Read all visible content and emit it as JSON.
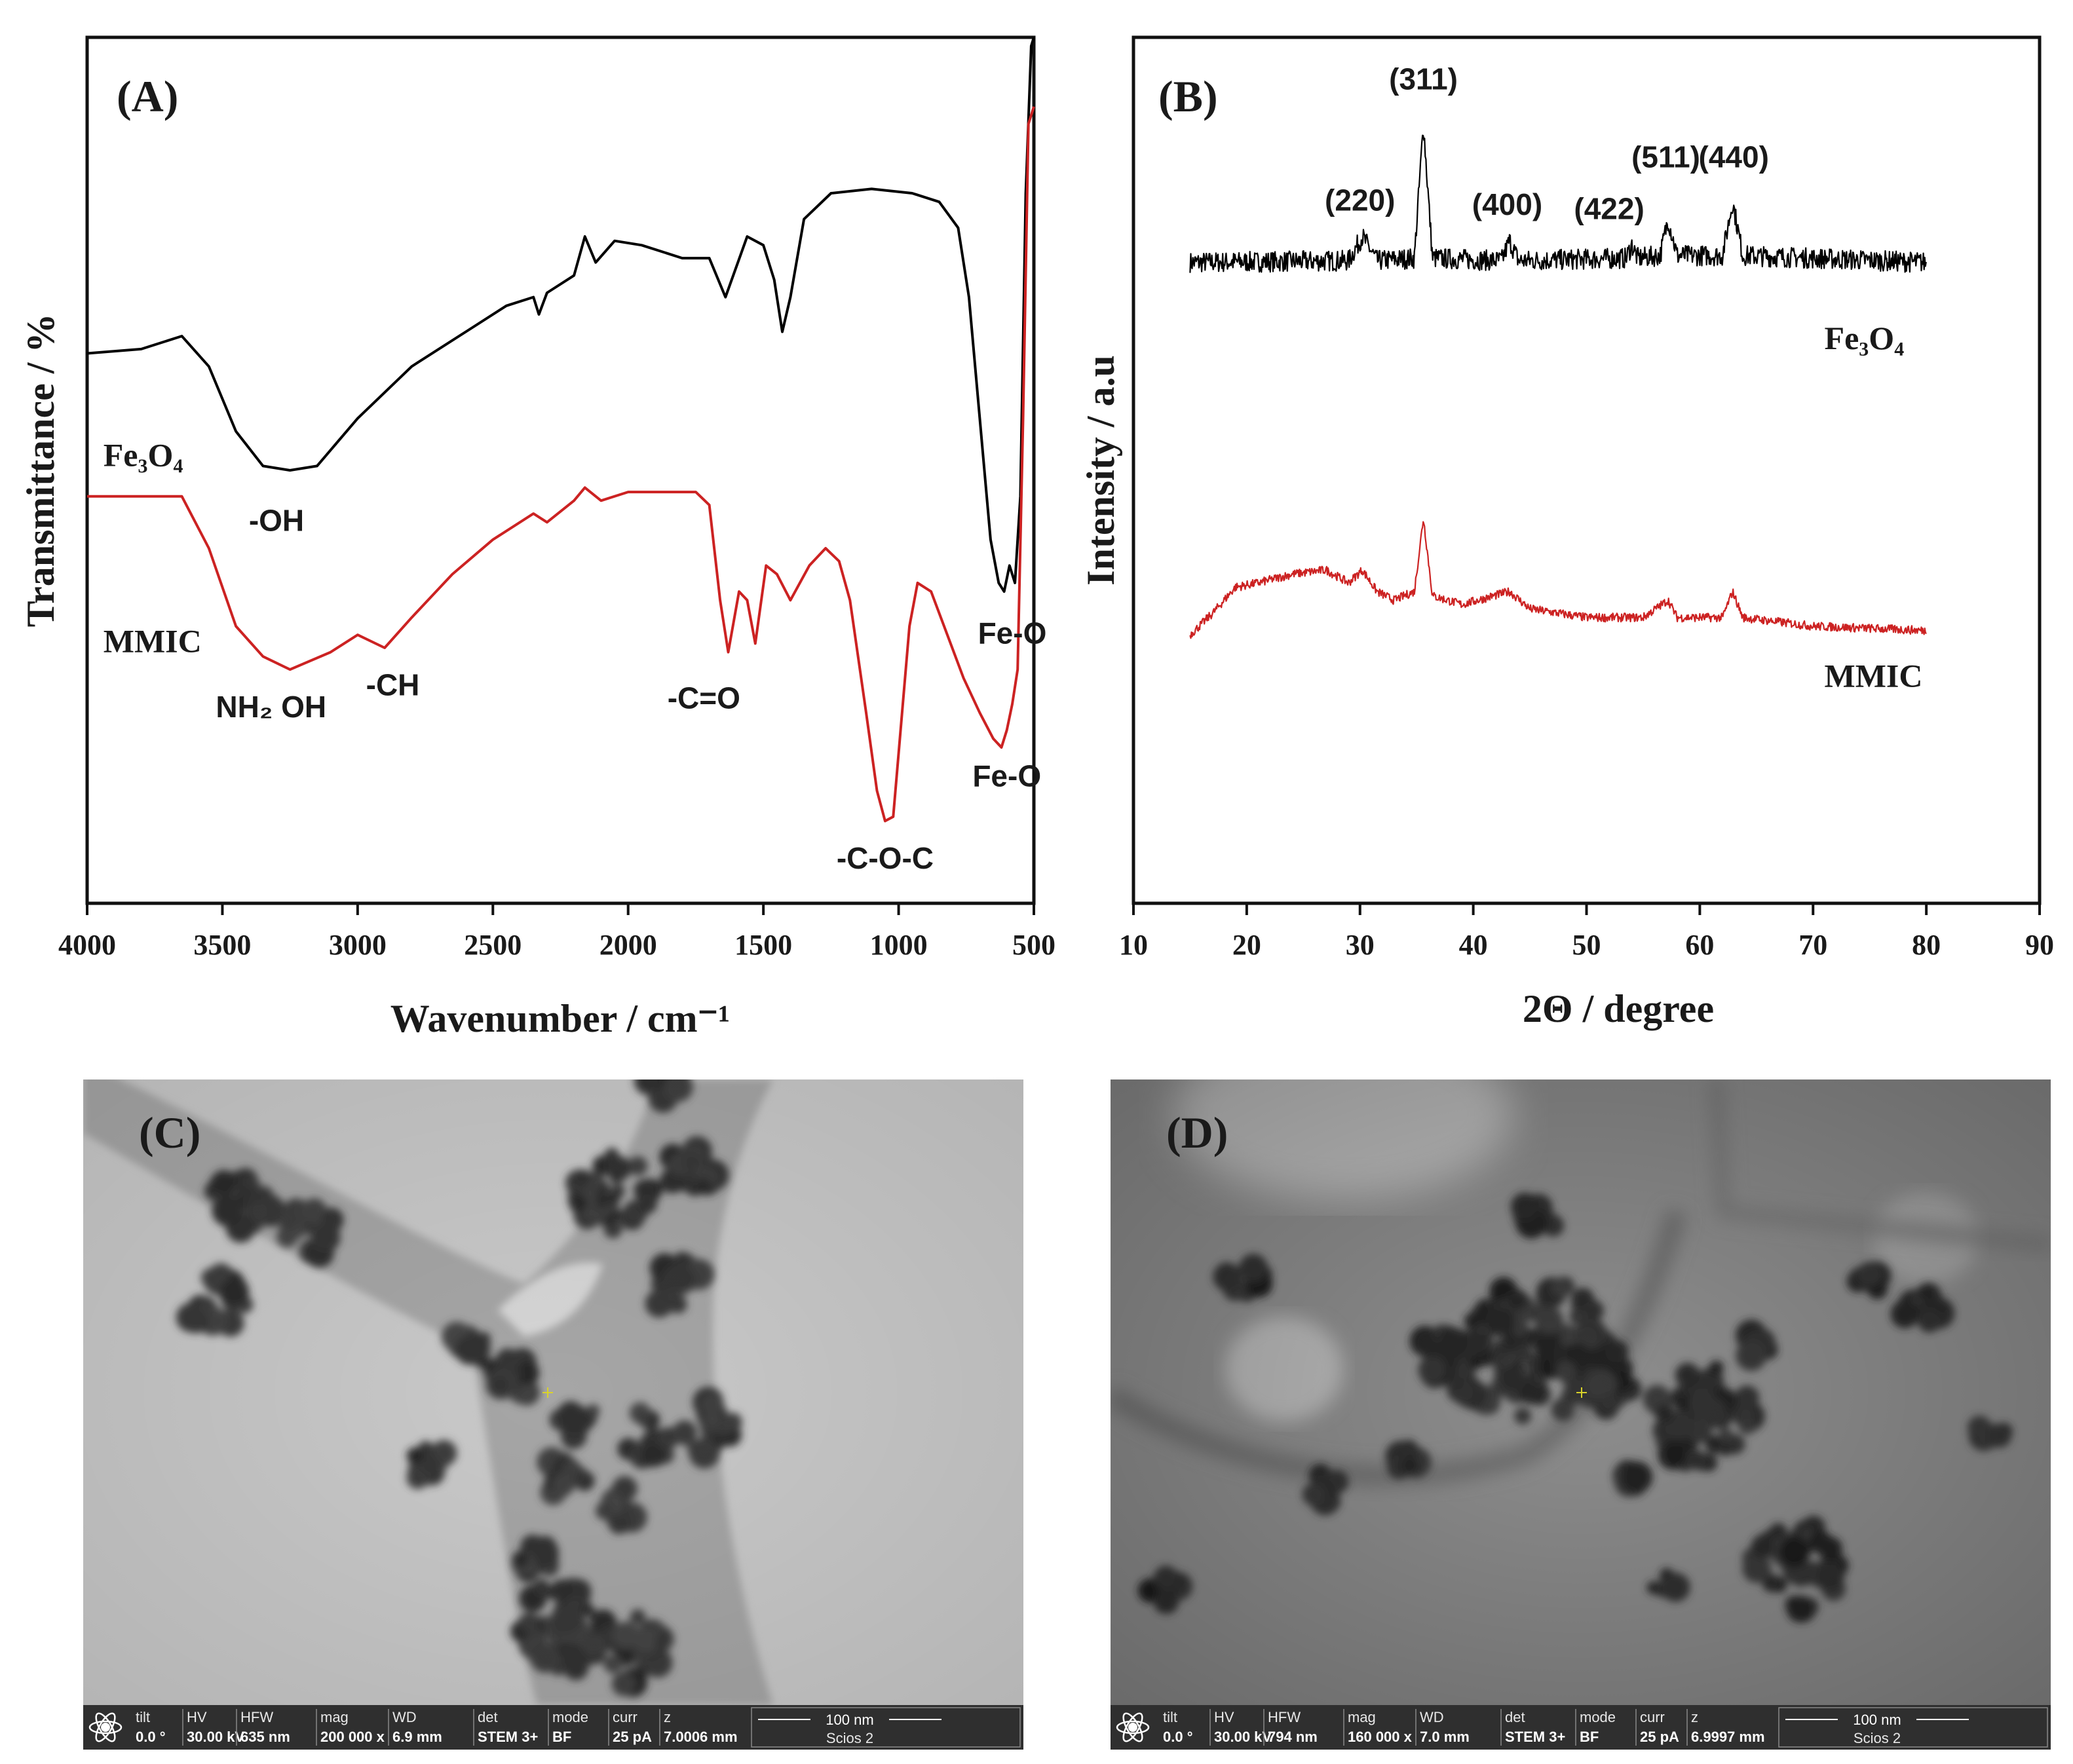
{
  "chart_data": [
    {
      "panel": "(A)",
      "type": "line",
      "xlabel": "Wavenumber / cm⁻¹",
      "ylabel": "Transmittance / %",
      "xlim": [
        4000,
        500
      ],
      "x_ticks": [
        "4000",
        "3500",
        "3000",
        "2500",
        "2000",
        "1500",
        "1000",
        "500"
      ],
      "series": [
        {
          "name": "Fe3O4",
          "color": "#000000",
          "points": [
            [
              4000,
              0.635
            ],
            [
              3800,
              0.64
            ],
            [
              3650,
              0.655
            ],
            [
              3550,
              0.62
            ],
            [
              3450,
              0.545
            ],
            [
              3350,
              0.505
            ],
            [
              3250,
              0.5
            ],
            [
              3150,
              0.505
            ],
            [
              3000,
              0.56
            ],
            [
              2800,
              0.62
            ],
            [
              2600,
              0.66
            ],
            [
              2450,
              0.69
            ],
            [
              2350,
              0.7
            ],
            [
              2330,
              0.68
            ],
            [
              2300,
              0.705
            ],
            [
              2200,
              0.725
            ],
            [
              2160,
              0.77
            ],
            [
              2120,
              0.74
            ],
            [
              2050,
              0.765
            ],
            [
              1950,
              0.76
            ],
            [
              1800,
              0.745
            ],
            [
              1700,
              0.745
            ],
            [
              1640,
              0.7
            ],
            [
              1560,
              0.77
            ],
            [
              1500,
              0.76
            ],
            [
              1460,
              0.72
            ],
            [
              1430,
              0.66
            ],
            [
              1400,
              0.7
            ],
            [
              1350,
              0.79
            ],
            [
              1250,
              0.82
            ],
            [
              1100,
              0.825
            ],
            [
              950,
              0.82
            ],
            [
              850,
              0.81
            ],
            [
              780,
              0.78
            ],
            [
              740,
              0.7
            ],
            [
              700,
              0.56
            ],
            [
              660,
              0.42
            ],
            [
              630,
              0.37
            ],
            [
              610,
              0.36
            ],
            [
              590,
              0.39
            ],
            [
              570,
              0.37
            ],
            [
              550,
              0.47
            ],
            [
              530,
              0.82
            ],
            [
              510,
              0.99
            ],
            [
              500,
              1.0
            ]
          ]
        },
        {
          "name": "MMIC",
          "color": "#cc2222",
          "points": [
            [
              4000,
              0.47
            ],
            [
              3800,
              0.47
            ],
            [
              3650,
              0.47
            ],
            [
              3550,
              0.41
            ],
            [
              3450,
              0.32
            ],
            [
              3350,
              0.285
            ],
            [
              3250,
              0.27
            ],
            [
              3100,
              0.29
            ],
            [
              3000,
              0.31
            ],
            [
              2900,
              0.295
            ],
            [
              2800,
              0.33
            ],
            [
              2650,
              0.38
            ],
            [
              2500,
              0.42
            ],
            [
              2350,
              0.45
            ],
            [
              2300,
              0.44
            ],
            [
              2200,
              0.465
            ],
            [
              2160,
              0.48
            ],
            [
              2100,
              0.465
            ],
            [
              2000,
              0.475
            ],
            [
              1900,
              0.475
            ],
            [
              1750,
              0.475
            ],
            [
              1700,
              0.46
            ],
            [
              1660,
              0.35
            ],
            [
              1630,
              0.29
            ],
            [
              1590,
              0.36
            ],
            [
              1560,
              0.35
            ],
            [
              1530,
              0.3
            ],
            [
              1490,
              0.39
            ],
            [
              1450,
              0.38
            ],
            [
              1400,
              0.35
            ],
            [
              1330,
              0.39
            ],
            [
              1270,
              0.41
            ],
            [
              1220,
              0.395
            ],
            [
              1180,
              0.35
            ],
            [
              1120,
              0.22
            ],
            [
              1080,
              0.13
            ],
            [
              1050,
              0.095
            ],
            [
              1020,
              0.1
            ],
            [
              990,
              0.21
            ],
            [
              960,
              0.32
            ],
            [
              930,
              0.37
            ],
            [
              880,
              0.36
            ],
            [
              820,
              0.31
            ],
            [
              760,
              0.26
            ],
            [
              700,
              0.22
            ],
            [
              650,
              0.19
            ],
            [
              620,
              0.18
            ],
            [
              600,
              0.2
            ],
            [
              580,
              0.23
            ],
            [
              560,
              0.27
            ],
            [
              540,
              0.56
            ],
            [
              520,
              0.9
            ],
            [
              500,
              0.92
            ]
          ]
        }
      ],
      "annotations": [
        {
          "text": "-OH",
          "x": 3300,
          "y": 0.43
        },
        {
          "text": "Fe-O",
          "x": 580,
          "y": 0.3
        },
        {
          "text": "NH₂ OH",
          "x": 3320,
          "y": 0.215
        },
        {
          "text": "-CH",
          "x": 2870,
          "y": 0.24
        },
        {
          "text": "-C=O",
          "x": 1720,
          "y": 0.225
        },
        {
          "text": "Fe-O",
          "x": 600,
          "y": 0.135
        },
        {
          "text": "-C-O-C",
          "x": 1050,
          "y": 0.04
        }
      ],
      "series_labels": [
        {
          "text": "Fe₃O₄",
          "x": 3940,
          "y": 0.505
        },
        {
          "text": "MMIC",
          "x": 3940,
          "y": 0.29
        }
      ]
    },
    {
      "panel": "(B)",
      "type": "line",
      "xlabel": "2Θ / degree",
      "ylabel": "Intensity / a.u",
      "xlim": [
        10,
        90
      ],
      "x_ticks": [
        "10",
        "20",
        "30",
        "40",
        "50",
        "60",
        "70",
        "80",
        "90"
      ],
      "series": [
        {
          "name": "Fe3O4",
          "color": "#000000",
          "baseline": 0.74,
          "noise": 0.012,
          "points": [
            [
              15,
              0.74
            ],
            [
              29,
              0.742
            ],
            [
              30.2,
              0.77
            ],
            [
              31.5,
              0.742
            ],
            [
              34.8,
              0.745
            ],
            [
              35.6,
              0.9
            ],
            [
              36.4,
              0.745
            ],
            [
              42.5,
              0.742
            ],
            [
              43.2,
              0.765
            ],
            [
              44,
              0.742
            ],
            [
              53.5,
              0.745
            ],
            [
              54,
              0.76
            ],
            [
              54.5,
              0.745
            ],
            [
              56.5,
              0.748
            ],
            [
              57.2,
              0.79
            ],
            [
              58,
              0.748
            ],
            [
              62,
              0.748
            ],
            [
              62.9,
              0.81
            ],
            [
              63.8,
              0.748
            ],
            [
              80,
              0.74
            ]
          ]
        },
        {
          "name": "MMIC",
          "color": "#cc2222",
          "baseline": 0.33,
          "noise": 0.005,
          "points": [
            [
              15,
              0.31
            ],
            [
              17,
              0.335
            ],
            [
              19,
              0.365
            ],
            [
              21,
              0.37
            ],
            [
              24,
              0.38
            ],
            [
              27,
              0.385
            ],
            [
              29,
              0.37
            ],
            [
              30.2,
              0.385
            ],
            [
              31.5,
              0.36
            ],
            [
              33,
              0.35
            ],
            [
              34.8,
              0.36
            ],
            [
              35.6,
              0.445
            ],
            [
              36.4,
              0.355
            ],
            [
              39,
              0.345
            ],
            [
              43.2,
              0.36
            ],
            [
              45,
              0.34
            ],
            [
              50,
              0.33
            ],
            [
              55,
              0.33
            ],
            [
              57.2,
              0.35
            ],
            [
              58,
              0.33
            ],
            [
              62,
              0.33
            ],
            [
              62.9,
              0.36
            ],
            [
              63.8,
              0.33
            ],
            [
              70,
              0.32
            ],
            [
              80,
              0.315
            ]
          ]
        }
      ],
      "annotations": [
        {
          "text": "(220)",
          "x": 30,
          "y": 0.8
        },
        {
          "text": "(311)",
          "x": 35.6,
          "y": 0.94
        },
        {
          "text": "(400)",
          "x": 43,
          "y": 0.795
        },
        {
          "text": "(422)",
          "x": 52,
          "y": 0.79
        },
        {
          "text": "(511)",
          "x": 57,
          "y": 0.85
        },
        {
          "text": "(440)",
          "x": 63,
          "y": 0.85
        }
      ],
      "series_labels": [
        {
          "text": "Fe₃O₄",
          "x": 71,
          "y": 0.64
        },
        {
          "text": "MMIC",
          "x": 71,
          "y": 0.25
        }
      ]
    }
  ],
  "micrographs": [
    {
      "panel": "(C)",
      "bar": {
        "headers": [
          "tilt",
          "HV",
          "HFW",
          "mag",
          "WD",
          "det",
          "mode",
          "curr",
          "z"
        ],
        "values": [
          "0.0 °",
          "30.00 kV",
          "635 nm",
          "200 000 x",
          "6.9 mm",
          "STEM 3+",
          "BF",
          "25 pA",
          "7.0006 mm"
        ],
        "scale": "100 nm",
        "instrument": "Scios 2"
      }
    },
    {
      "panel": "(D)",
      "bar": {
        "headers": [
          "tilt",
          "HV",
          "HFW",
          "mag",
          "WD",
          "det",
          "mode",
          "curr",
          "z"
        ],
        "values": [
          "0.0 °",
          "30.00 kV",
          "794 nm",
          "160 000 x",
          "7.0 mm",
          "STEM 3+",
          "BF",
          "25 pA",
          "6.9997 mm"
        ],
        "scale": "100 nm",
        "instrument": "Scios 2"
      }
    }
  ]
}
